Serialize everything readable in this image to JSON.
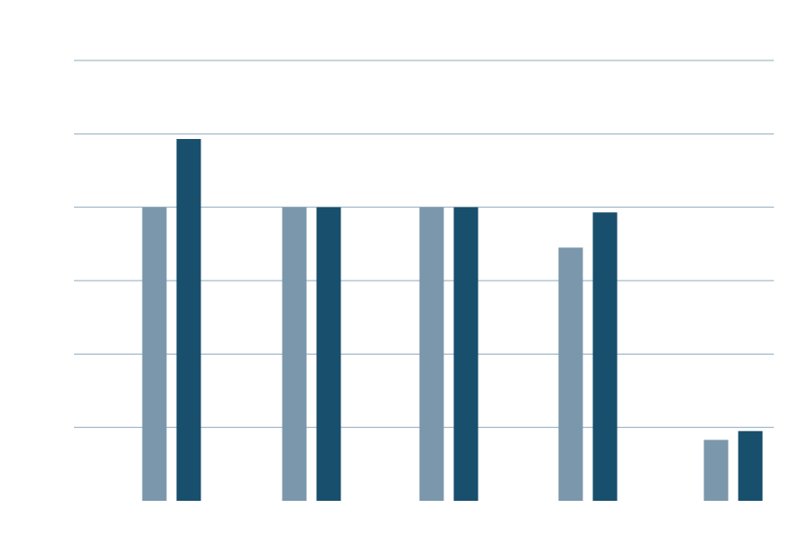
{
  "chart_data": {
    "type": "bar",
    "title": "",
    "xlabel": "",
    "ylabel": "",
    "categories": [
      "",
      "",
      "",
      "",
      ""
    ],
    "ylim": [
      0,
      6
    ],
    "grid": true,
    "gridlines": [
      1,
      2,
      3,
      4,
      5,
      6
    ],
    "series": [
      {
        "values": [
          4.0,
          4.0,
          4.0,
          3.45,
          0.83
        ],
        "color": "#7b97ab"
      },
      {
        "values": [
          4.93,
          4.0,
          4.0,
          3.93,
          0.95
        ],
        "color": "#184f6d"
      }
    ],
    "grid_color": "#8fa8ba"
  }
}
